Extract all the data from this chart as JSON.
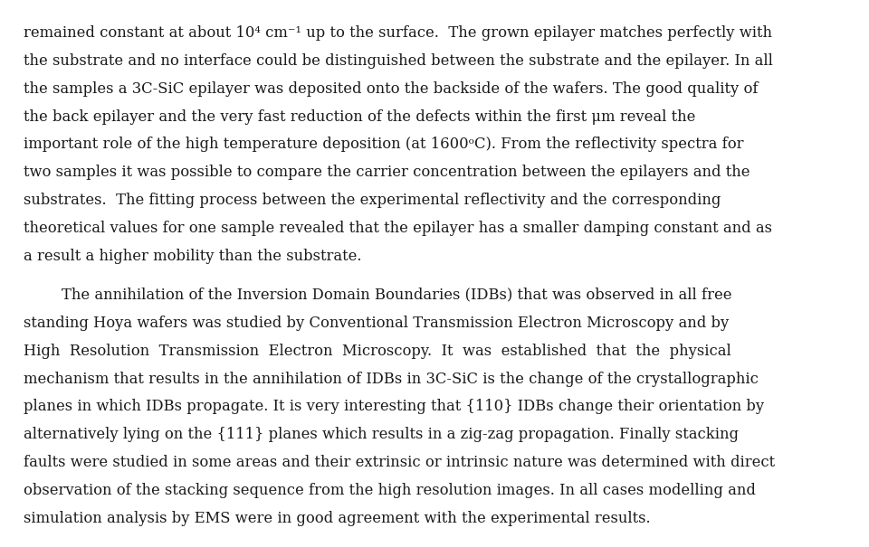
{
  "background_color": "#ffffff",
  "text_color": "#1a1a1a",
  "font_family": "serif",
  "font_size": 11.8,
  "fig_width": 9.6,
  "fig_height": 6.05,
  "dpi": 100,
  "lines_p1": [
    "remained constant at about 10⁴ cm⁻¹ up to the surface.  The grown epilayer matches perfectly with",
    "the substrate and no interface could be distinguished between the substrate and the epilayer. In all",
    "the samples a 3C-SiC epilayer was deposited onto the backside of the wafers. The good quality of",
    "the back epilayer and the very fast reduction of the defects within the first μm reveal the",
    "important role of the high temperature deposition (at 1600ᵒC). From the reflectivity spectra for",
    "two samples it was possible to compare the carrier concentration between the epilayers and the",
    "substrates.  The fitting process between the experimental reflectivity and the corresponding",
    "theoretical values for one sample revealed that the epilayer has a smaller damping constant and as",
    "a result a higher mobility than the substrate."
  ],
  "lines_p2": [
    "        The annihilation of the Inversion Domain Boundaries (IDBs) that was observed in all free",
    "standing Hoya wafers was studied by Conventional Transmission Electron Microscopy and by",
    "High  Resolution  Transmission  Electron  Microscopy.  It  was  established  that  the  physical",
    "mechanism that results in the annihilation of IDBs in 3C-SiC is the change of the crystallographic",
    "planes in which IDBs propagate. It is very interesting that {110} IDBs change their orientation by",
    "alternatively lying on the {111} planes which results in a zig-zag propagation. Finally stacking",
    "faults were studied in some areas and their extrinsic or intrinsic nature was determined with direct",
    "observation of the stacking sequence from the high resolution images. In all cases modelling and",
    "simulation analysis by EMS were in good agreement with the experimental results."
  ]
}
